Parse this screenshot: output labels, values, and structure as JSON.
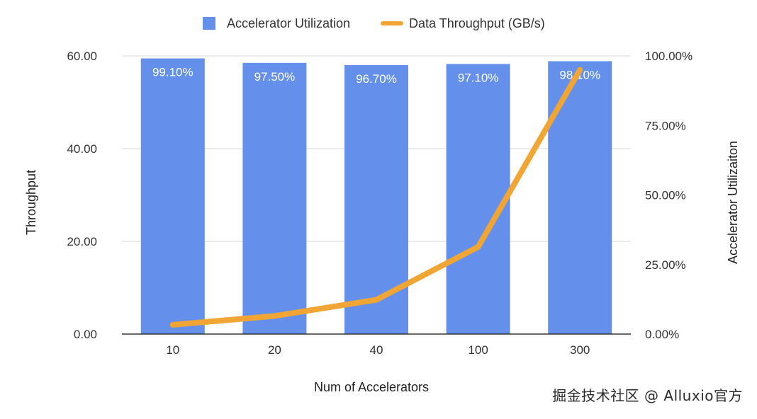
{
  "chart_data": {
    "type": "bar",
    "categories": [
      "10",
      "20",
      "40",
      "100",
      "300"
    ],
    "series": [
      {
        "name": "Accelerator Utilization",
        "kind": "bar",
        "axis": "right",
        "color": "#6490EB",
        "values": [
          99.1,
          97.5,
          96.7,
          97.1,
          98.1
        ],
        "labels": [
          "99.10%",
          "97.50%",
          "96.70%",
          "97.10%",
          "98.10%"
        ]
      },
      {
        "name": "Data Throughput (GB/s)",
        "kind": "line",
        "axis": "left",
        "color": "#F0A535",
        "values": [
          2.0,
          3.9,
          7.4,
          18.8,
          57.0
        ]
      }
    ],
    "xlabel": "Num of Accelerators",
    "ylabel": "Throughput",
    "y2label": "Accelerator Utilizaiton",
    "ylim": [
      0,
      60
    ],
    "y2lim": [
      0,
      100
    ],
    "yticks": [
      "0.00",
      "20.00",
      "40.00",
      "60.00"
    ],
    "y2ticks": [
      "0.00%",
      "25.00%",
      "50.00%",
      "75.00%",
      "100.00%"
    ],
    "legend_position": "top",
    "grid": true
  },
  "watermark": "掘金技术社区 @ Alluxio官方"
}
